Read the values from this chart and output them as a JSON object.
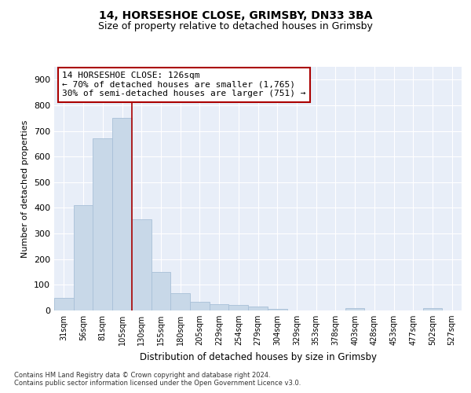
{
  "title1": "14, HORSESHOE CLOSE, GRIMSBY, DN33 3BA",
  "title2": "Size of property relative to detached houses in Grimsby",
  "xlabel": "Distribution of detached houses by size in Grimsby",
  "ylabel": "Number of detached properties",
  "bar_labels": [
    "31sqm",
    "56sqm",
    "81sqm",
    "105sqm",
    "130sqm",
    "155sqm",
    "180sqm",
    "205sqm",
    "229sqm",
    "254sqm",
    "279sqm",
    "304sqm",
    "329sqm",
    "353sqm",
    "378sqm",
    "403sqm",
    "428sqm",
    "453sqm",
    "477sqm",
    "502sqm",
    "527sqm"
  ],
  "bar_values": [
    48,
    410,
    670,
    750,
    355,
    150,
    68,
    35,
    25,
    20,
    15,
    7,
    0,
    0,
    0,
    8,
    0,
    0,
    0,
    8,
    0
  ],
  "bar_color": "#c8d8e8",
  "bar_edgecolor": "#a8c0d8",
  "vline_color": "#aa0000",
  "annotation_text": "14 HORSESHOE CLOSE: 126sqm\n← 70% of detached houses are smaller (1,765)\n30% of semi-detached houses are larger (751) →",
  "annotation_box_facecolor": "#ffffff",
  "annotation_box_edgecolor": "#aa0000",
  "ylim_max": 950,
  "yticks": [
    0,
    100,
    200,
    300,
    400,
    500,
    600,
    700,
    800,
    900
  ],
  "bg_color": "#e8eef8",
  "grid_color": "#ffffff",
  "footer1": "Contains HM Land Registry data © Crown copyright and database right 2024.",
  "footer2": "Contains public sector information licensed under the Open Government Licence v3.0."
}
